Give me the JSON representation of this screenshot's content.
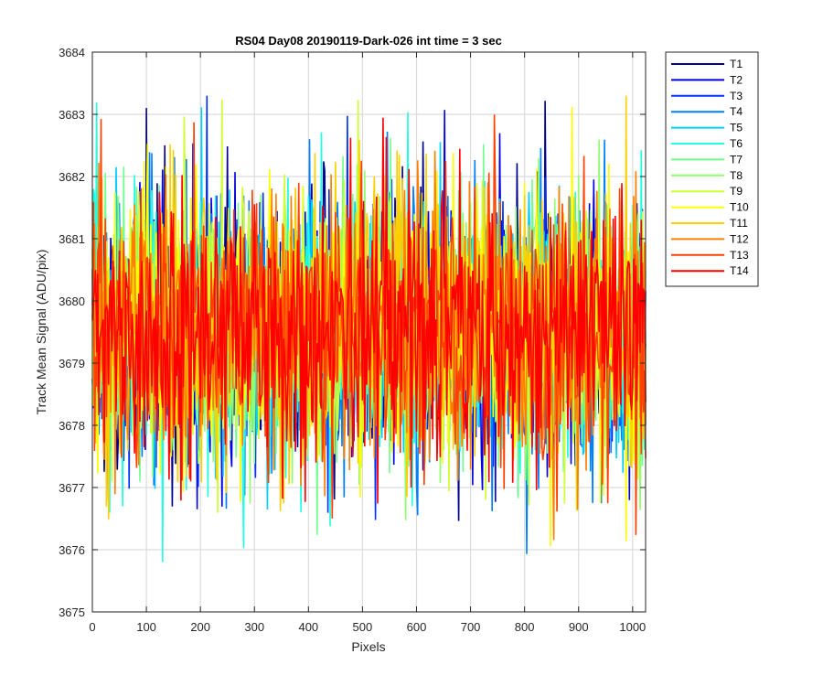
{
  "chart_data": {
    "type": "line",
    "title": "RS04 Day08 20190119-Dark-026 int time = 3 sec",
    "xlabel": "Pixels",
    "ylabel": "Track Mean Signal (ADU/pix)",
    "xlim": [
      0,
      1024
    ],
    "ylim": [
      3675,
      3684
    ],
    "xticks": [
      0,
      100,
      200,
      300,
      400,
      500,
      600,
      700,
      800,
      900,
      1000
    ],
    "yticks": [
      3675,
      3676,
      3677,
      3678,
      3679,
      3680,
      3681,
      3682,
      3683,
      3684
    ],
    "grid": true,
    "legend_position": "outside-top-right",
    "noise": {
      "mean": 3679.5,
      "typical_min": 3677.5,
      "typical_max": 3681.8,
      "overall_min": 3675.8,
      "overall_max": 3683.3
    },
    "series": [
      {
        "name": "T1",
        "color": "#00008F"
      },
      {
        "name": "T2",
        "color": "#0000DF"
      },
      {
        "name": "T3",
        "color": "#0030FF"
      },
      {
        "name": "T4",
        "color": "#0080FF"
      },
      {
        "name": "T5",
        "color": "#00CFFF"
      },
      {
        "name": "T6",
        "color": "#20FFDF"
      },
      {
        "name": "T7",
        "color": "#70FF8F"
      },
      {
        "name": "T8",
        "color": "#8FFF70"
      },
      {
        "name": "T9",
        "color": "#CFFF30"
      },
      {
        "name": "T10",
        "color": "#FFFF00"
      },
      {
        "name": "T11",
        "color": "#FFCF00"
      },
      {
        "name": "T12",
        "color": "#FF8000"
      },
      {
        "name": "T13",
        "color": "#FF4000"
      },
      {
        "name": "T14",
        "color": "#FF0000"
      }
    ]
  }
}
